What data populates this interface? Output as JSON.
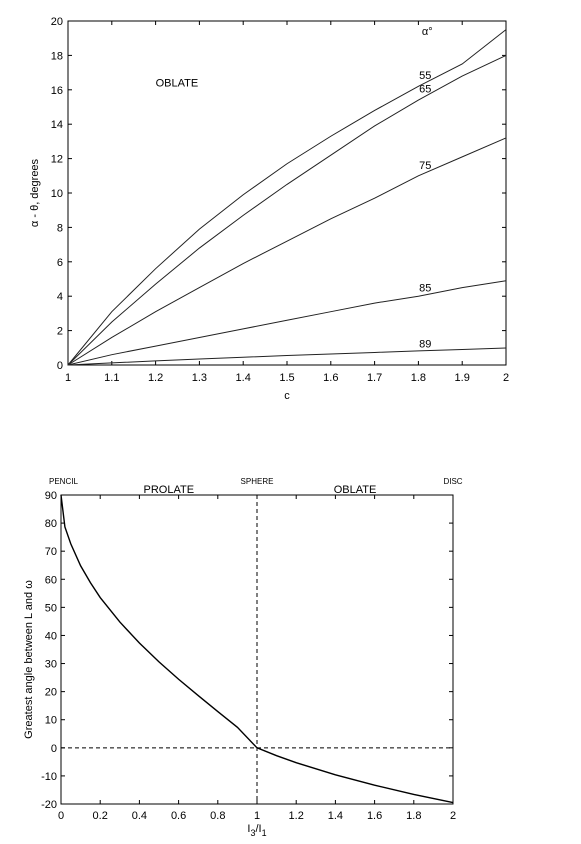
{
  "chart_data": [
    {
      "type": "line",
      "title": "",
      "xlabel": "c",
      "ylabel": "α - θ,  degrees",
      "xlim": [
        1,
        2
      ],
      "ylim": [
        0,
        20
      ],
      "xticks": [
        "1",
        "1.1",
        "1.2",
        "1.3",
        "1.4",
        "1.5",
        "1.6",
        "1.7",
        "1.8",
        "1.9",
        "2"
      ],
      "yticks": [
        "0",
        "2",
        "4",
        "6",
        "8",
        "10",
        "12",
        "14",
        "16",
        "18",
        "20"
      ],
      "region_label": "OBLATE",
      "legend_title": "α°",
      "x": [
        1.0,
        1.1,
        1.2,
        1.3,
        1.4,
        1.5,
        1.6,
        1.7,
        1.8,
        1.9,
        2.0
      ],
      "series": [
        {
          "name": "55",
          "values": [
            0,
            3.1,
            5.6,
            7.9,
            9.9,
            11.7,
            13.3,
            14.8,
            16.2,
            17.5,
            19.5
          ]
        },
        {
          "name": "65",
          "values": [
            0,
            2.5,
            4.7,
            6.8,
            8.7,
            10.5,
            12.2,
            13.9,
            15.4,
            16.8,
            18.0
          ]
        },
        {
          "name": "75",
          "values": [
            0,
            1.6,
            3.1,
            4.5,
            5.9,
            7.2,
            8.5,
            9.7,
            11.0,
            12.1,
            13.2
          ]
        },
        {
          "name": "85",
          "values": [
            0,
            0.6,
            1.1,
            1.6,
            2.1,
            2.6,
            3.1,
            3.6,
            4.0,
            4.5,
            4.9
          ]
        },
        {
          "name": "89",
          "values": [
            0,
            0.12,
            0.24,
            0.35,
            0.45,
            0.55,
            0.64,
            0.73,
            0.82,
            0.9,
            0.99
          ]
        }
      ],
      "series_label_x": 1.82,
      "grid": false
    },
    {
      "type": "line",
      "title": "",
      "xlabel": "I3/I1",
      "ylabel": "Greatest angle between L and ω",
      "xlim": [
        0,
        2
      ],
      "ylim": [
        -20,
        90
      ],
      "xticks": [
        "0",
        "0.2",
        "0.4",
        "0.6",
        "0.8",
        "1",
        "1.2",
        "1.4",
        "1.6",
        "1.8",
        "2"
      ],
      "yticks": [
        "-20",
        "-10",
        "0",
        "10",
        "20",
        "30",
        "40",
        "50",
        "60",
        "70",
        "80",
        "90"
      ],
      "top_labels": [
        {
          "text": "PENCIL",
          "x": 0
        },
        {
          "text": "PROLATE",
          "x": 0.55
        },
        {
          "text": "SPHERE",
          "x": 1.0
        },
        {
          "text": "OBLATE",
          "x": 1.5
        },
        {
          "text": "DISC",
          "x": 2.0
        }
      ],
      "x": [
        0.0,
        0.02,
        0.05,
        0.1,
        0.15,
        0.2,
        0.3,
        0.4,
        0.5,
        0.6,
        0.7,
        0.8,
        0.9,
        1.0,
        1.1,
        1.2,
        1.4,
        1.6,
        1.8,
        2.0
      ],
      "values": [
        90,
        78.6,
        72.6,
        64.8,
        58.8,
        53.5,
        44.8,
        37.3,
        30.6,
        24.4,
        18.6,
        12.9,
        7.3,
        0,
        -2.8,
        -5.3,
        -9.6,
        -13.3,
        -16.6,
        -19.5
      ],
      "reference_lines": {
        "horizontal_y": 0,
        "vertical_x": 1
      },
      "grid": false
    }
  ]
}
